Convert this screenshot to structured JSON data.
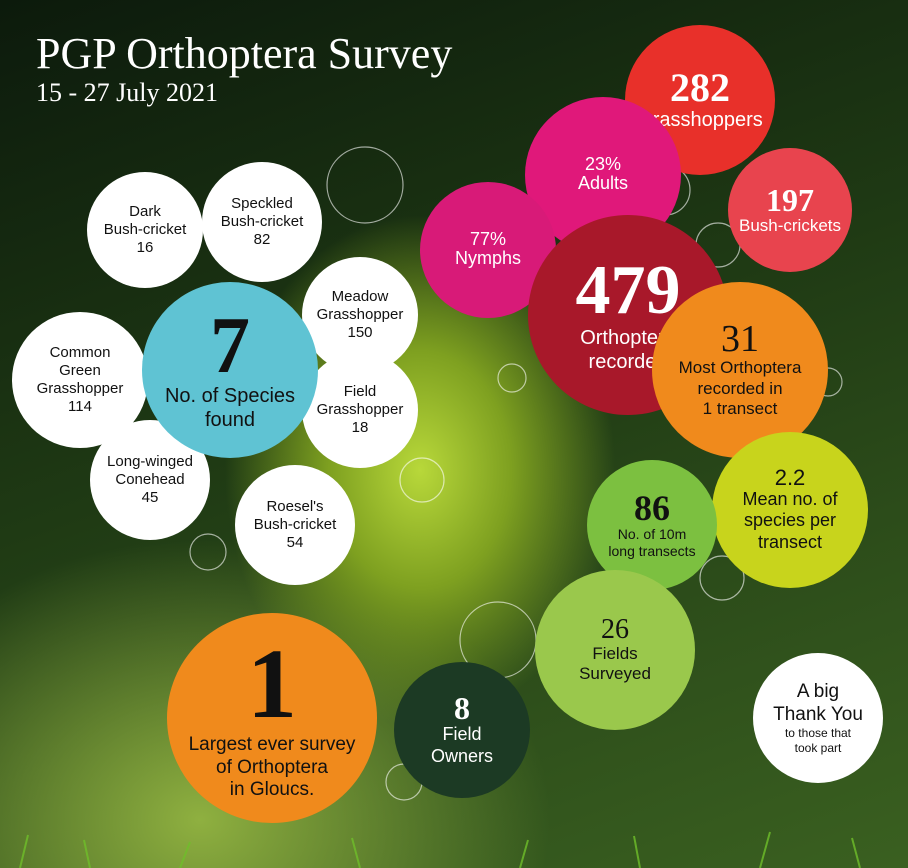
{
  "header": {
    "title": "PGP Orthoptera Survey",
    "date": "15 - 27 July 2021"
  },
  "species": [
    {
      "lines": [
        "Dark",
        "Bush-cricket"
      ],
      "count": 16
    },
    {
      "lines": [
        "Speckled",
        "Bush-cricket"
      ],
      "count": 82
    },
    {
      "lines": [
        "Meadow",
        "Grasshopper"
      ],
      "count": 150
    },
    {
      "lines": [
        "Common",
        "Green",
        "Grasshopper"
      ],
      "count": 114
    },
    {
      "lines": [
        "Field",
        "Grasshopper"
      ],
      "count": 18
    },
    {
      "lines": [
        "Long-winged",
        "Conehead"
      ],
      "count": 45
    },
    {
      "lines": [
        "Roesel's",
        "Bush-cricket"
      ],
      "count": 54
    }
  ],
  "species_total": {
    "number": 7,
    "lines": [
      "No. of Species",
      "found"
    ]
  },
  "stats": [
    {
      "number": 282,
      "lines": [
        "Grasshoppers"
      ]
    },
    {
      "number": 197,
      "lines": [
        "Bush-crickets"
      ]
    },
    {
      "number": "23%",
      "lines": [
        "Adults"
      ]
    },
    {
      "number": "77%",
      "lines": [
        "Nymphs"
      ]
    },
    {
      "number": 479,
      "lines": [
        "Orthoptera",
        "recorded"
      ]
    },
    {
      "number": 31,
      "lines": [
        "Most Orthoptera",
        "recorded in",
        "1 transect"
      ]
    },
    {
      "number": 2.2,
      "lines": [
        "Mean no. of",
        "species per",
        "transect"
      ]
    },
    {
      "number": 86,
      "lines": [
        "No. of 10m",
        "long transects"
      ]
    },
    {
      "number": 26,
      "lines": [
        "Fields",
        "Surveyed"
      ]
    },
    {
      "number": 8,
      "lines": [
        "Field",
        "Owners"
      ]
    },
    {
      "number": 1,
      "lines": [
        "Largest ever survey",
        "of Orthoptera",
        "in Gloucs."
      ]
    }
  ],
  "thanks": {
    "lines": [
      "A big",
      "Thank You"
    ],
    "small": [
      "to those that",
      "took part"
    ]
  }
}
